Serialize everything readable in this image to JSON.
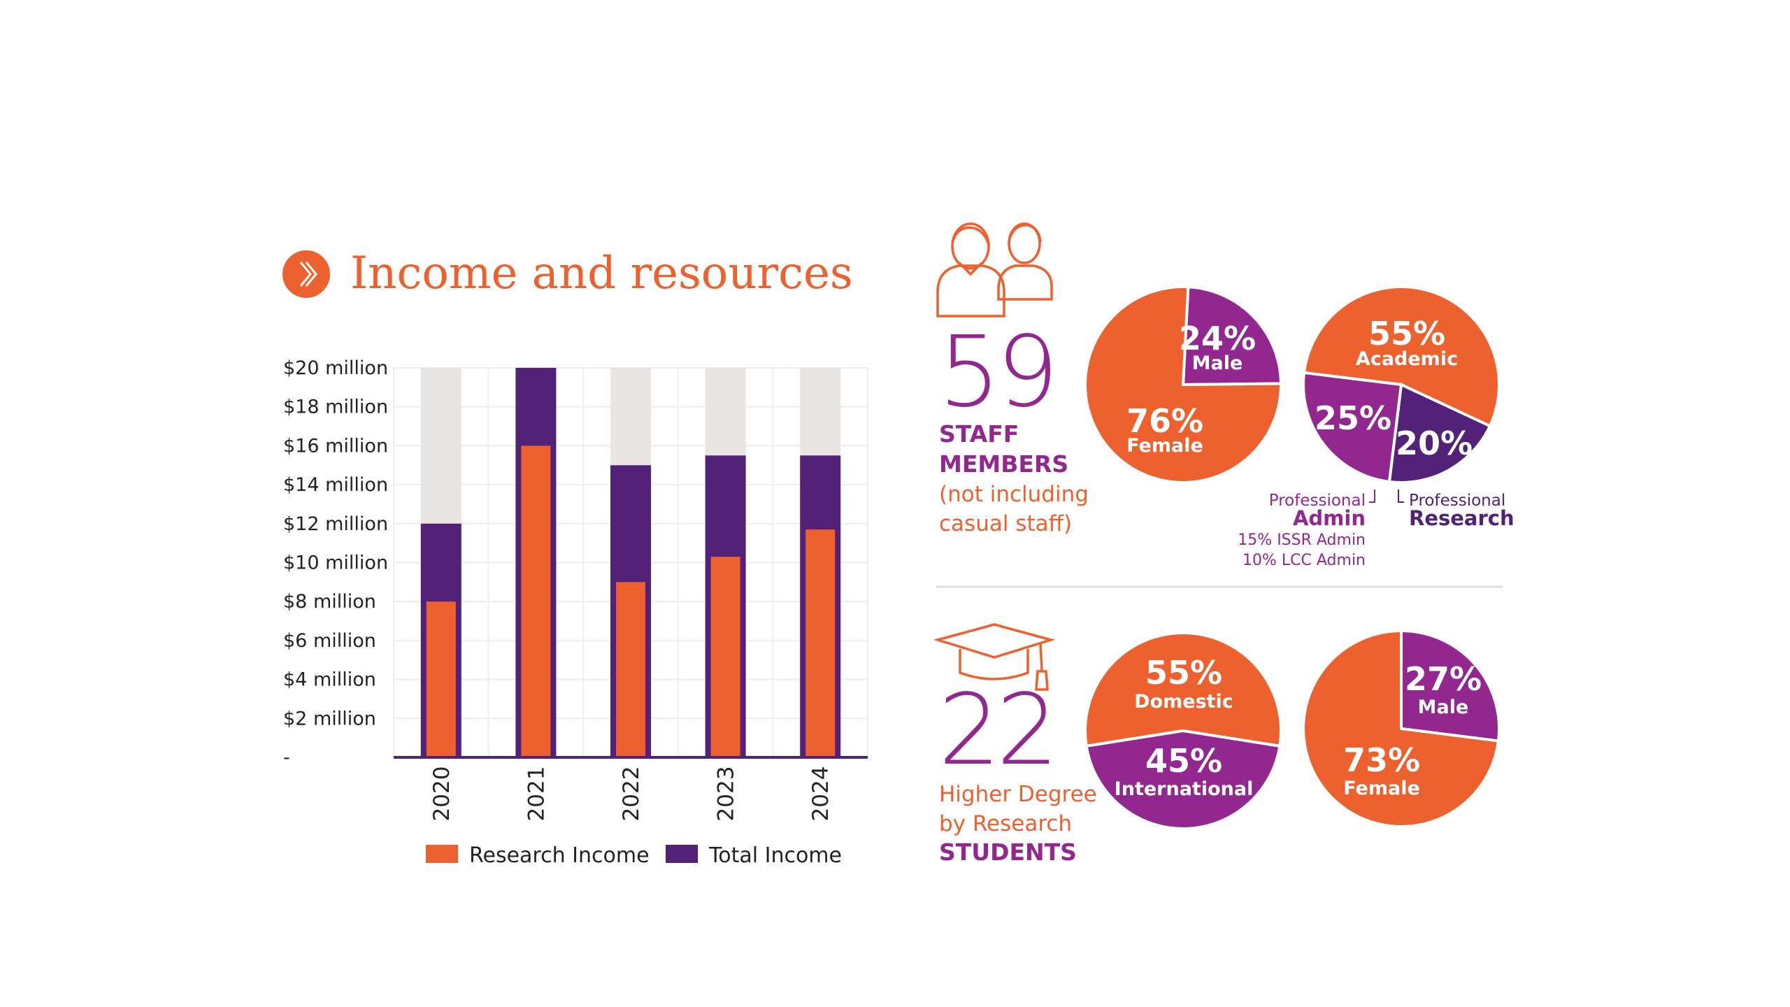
{
  "title": "Income and resources",
  "staff": {
    "count": 59,
    "lines": [
      "STAFF",
      "MEMBERS",
      "(not including",
      "casual staff)"
    ]
  },
  "students": {
    "count": 22,
    "lines": [
      "Higher Degree",
      "by Research",
      "STUDENTS"
    ]
  },
  "chart_data": [
    {
      "type": "bar",
      "categories": [
        "2020",
        "2021",
        "2022",
        "2023",
        "2024"
      ],
      "series": [
        {
          "name": "Research Income",
          "color": "#ec612d",
          "values": [
            8,
            16,
            9,
            10.3,
            11.7
          ]
        },
        {
          "name": "Total Income",
          "color": "#522178",
          "values": [
            12,
            20,
            15,
            15.5,
            15.5
          ]
        }
      ],
      "ylim": [
        0,
        20
      ],
      "yticks": [
        {
          "value": 0,
          "label": "-"
        },
        {
          "value": 2,
          "label": "$2 million"
        },
        {
          "value": 4,
          "label": "$4 million"
        },
        {
          "value": 6,
          "label": "$6 million"
        },
        {
          "value": 8,
          "label": "$8 million"
        },
        {
          "value": 10,
          "label": "$10 million"
        },
        {
          "value": 12,
          "label": "$12 million"
        },
        {
          "value": 14,
          "label": "$14 million"
        },
        {
          "value": 16,
          "label": "$16 million"
        },
        {
          "value": 18,
          "label": "$18 million"
        },
        {
          "value": 20,
          "label": "$20 million"
        }
      ],
      "grid": true
    },
    {
      "type": "pie",
      "categories": [
        "Male",
        "Female"
      ],
      "values": [
        24,
        76
      ],
      "value_labels": [
        "24%",
        "76%"
      ],
      "colors": [
        "#92278f",
        "#ec612d"
      ]
    },
    {
      "type": "pie",
      "categories": [
        "Academic",
        "Research",
        "Admin"
      ],
      "values": [
        55,
        20,
        25
      ],
      "value_labels": [
        "55%",
        "20%",
        "25%"
      ],
      "colors": [
        "#ec612d",
        "#522178",
        "#92278f"
      ],
      "annotations": [
        "Professional",
        "Professional",
        "15% ISSR Admin",
        "10% LCC Admin"
      ]
    },
    {
      "type": "pie",
      "categories": [
        "Domestic",
        "International"
      ],
      "values": [
        55,
        45
      ],
      "value_labels": [
        "55%",
        "45%"
      ],
      "colors": [
        "#ec612d",
        "#92278f"
      ]
    },
    {
      "type": "pie",
      "categories": [
        "Male",
        "Female"
      ],
      "values": [
        27,
        73
      ],
      "value_labels": [
        "27%",
        "73%"
      ],
      "colors": [
        "#92278f",
        "#ec612d"
      ]
    }
  ]
}
